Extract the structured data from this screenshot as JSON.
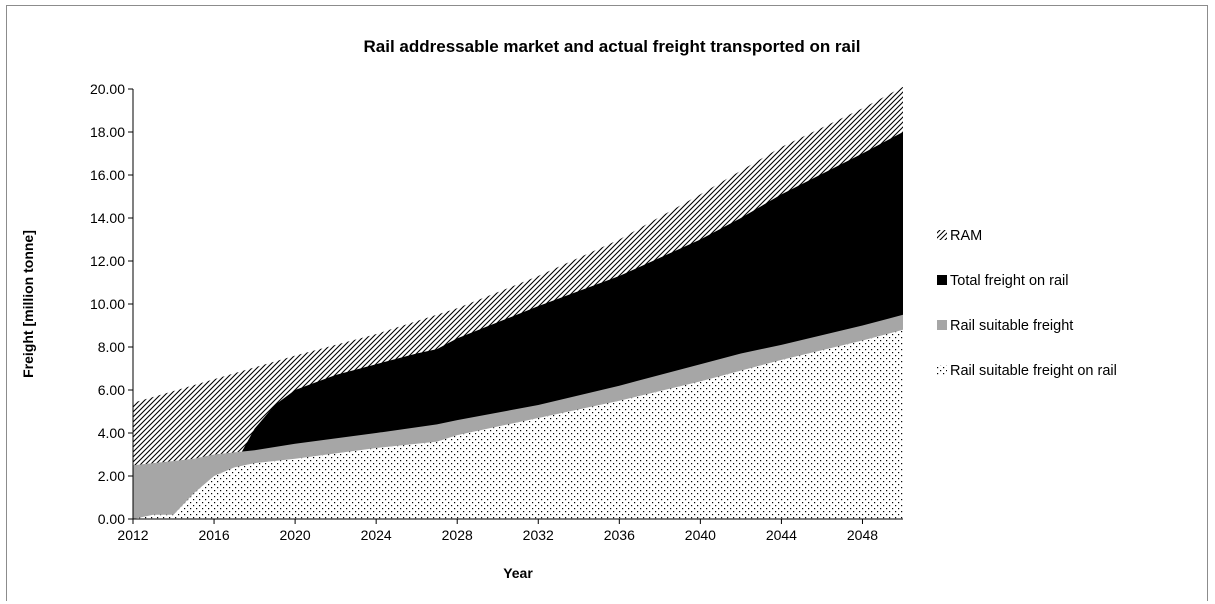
{
  "chart_data": {
    "type": "area",
    "title": "Rail addressable market and actual freight transported on rail",
    "xlabel": "Year",
    "ylabel": "Freight  [million tonne]",
    "xlim": [
      2012,
      2050
    ],
    "ylim": [
      0,
      20
    ],
    "x_ticks": [
      "2012",
      "2016",
      "2020",
      "2024",
      "2028",
      "2032",
      "2036",
      "2040",
      "2044",
      "2048"
    ],
    "y_ticks": [
      "0.00",
      "2.00",
      "4.00",
      "6.00",
      "8.00",
      "10.00",
      "12.00",
      "14.00",
      "16.00",
      "18.00",
      "20.00"
    ],
    "grid": false,
    "legend_position": "right",
    "series": [
      {
        "name": "RAM",
        "pattern": "diagonal-hatch",
        "color": "#000000",
        "x": [
          2012,
          2016,
          2020,
          2024,
          2028,
          2032,
          2036,
          2040,
          2044,
          2048,
          2050
        ],
        "values": [
          5.4,
          6.5,
          7.6,
          8.6,
          9.8,
          11.3,
          13.0,
          15.1,
          17.3,
          19.1,
          20.1
        ]
      },
      {
        "name": "Total freight on rail",
        "pattern": "solid",
        "color": "#000000",
        "x": [
          2012,
          2013,
          2014,
          2015,
          2016,
          2017,
          2018,
          2019,
          2020,
          2022,
          2024,
          2026,
          2027,
          2028,
          2032,
          2036,
          2040,
          2042,
          2044,
          2048,
          2050
        ],
        "values": [
          0.0,
          0.2,
          0.2,
          1.2,
          2.0,
          2.5,
          4.2,
          5.3,
          6.0,
          6.7,
          7.2,
          7.7,
          7.9,
          8.4,
          9.9,
          11.3,
          13.0,
          14.0,
          15.1,
          17.0,
          18.0
        ]
      },
      {
        "name": "Rail suitable freight",
        "pattern": "solid",
        "color": "#a6a6a6",
        "x": [
          2012,
          2013,
          2014,
          2015,
          2016,
          2017,
          2018,
          2020,
          2024,
          2027,
          2028,
          2032,
          2036,
          2040,
          2042,
          2044,
          2048,
          2050
        ],
        "values": [
          2.5,
          2.6,
          2.7,
          2.8,
          3.0,
          3.1,
          3.2,
          3.5,
          4.0,
          4.4,
          4.6,
          5.3,
          6.2,
          7.2,
          7.7,
          8.1,
          9.0,
          9.5
        ]
      },
      {
        "name": "Rail suitable freight on rail",
        "pattern": "dots",
        "color": "#000000",
        "x": [
          2012,
          2013,
          2014,
          2015,
          2016,
          2017,
          2018,
          2020,
          2024,
          2027,
          2028,
          2032,
          2036,
          2040,
          2044,
          2048,
          2050
        ],
        "values": [
          0.0,
          0.2,
          0.2,
          1.2,
          2.0,
          2.4,
          2.6,
          2.8,
          3.3,
          3.6,
          3.9,
          4.7,
          5.5,
          6.4,
          7.4,
          8.3,
          8.8
        ]
      }
    ]
  }
}
